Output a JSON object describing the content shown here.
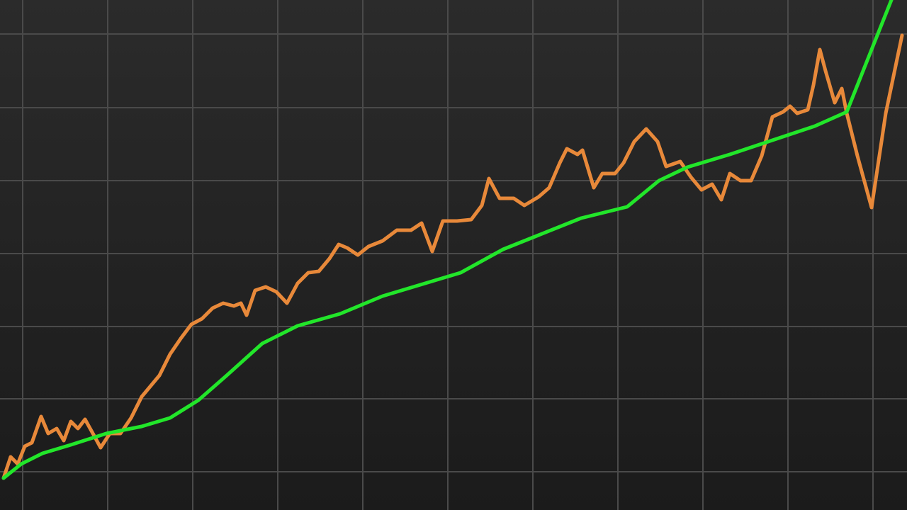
{
  "chart_data": {
    "type": "line",
    "xlim": [
      -32,
      1248
    ],
    "ylim": [
      -54,
      666
    ],
    "xticks": [
      0,
      120,
      240,
      360,
      480,
      600,
      720,
      840,
      960,
      1080,
      1200
    ],
    "yticks": [
      0,
      103,
      205,
      308,
      411,
      514,
      618
    ],
    "grid": true,
    "series": [
      {
        "color": "#e8893a",
        "x": [
          -27,
          -17,
          -7,
          3,
          13,
          26,
          36,
          48,
          58,
          68,
          78,
          88,
          98,
          110,
          123,
          138,
          153,
          168,
          178,
          193,
          208,
          223,
          238,
          253,
          268,
          283,
          298,
          308,
          316,
          328,
          343,
          358,
          373,
          388,
          403,
          418,
          433,
          446,
          458,
          473,
          488,
          508,
          528,
          548,
          563,
          578,
          593,
          613,
          633,
          648,
          658,
          673,
          693,
          708,
          728,
          743,
          758,
          768,
          783,
          790,
          806,
          818,
          836,
          848,
          863,
          880,
          896,
          908,
          928,
          943,
          958,
          973,
          986,
          998,
          1013,
          1028,
          1043,
          1058,
          1073,
          1083,
          1093,
          1108,
          1116,
          1125,
          1133,
          1146,
          1156,
          1163,
          1178,
          1198,
          1218,
          1241
        ],
        "values": [
          -9,
          21,
          11,
          36,
          41,
          78,
          54,
          61,
          44,
          71,
          61,
          74,
          56,
          34,
          54,
          54,
          76,
          106,
          118,
          136,
          166,
          188,
          208,
          216,
          231,
          238,
          234,
          238,
          221,
          256,
          261,
          254,
          238,
          266,
          281,
          283,
          301,
          321,
          316,
          306,
          318,
          326,
          341,
          341,
          351,
          311,
          354,
          354,
          356,
          376,
          414,
          386,
          386,
          376,
          388,
          401,
          436,
          456,
          448,
          454,
          401,
          421,
          421,
          436,
          466,
          484,
          466,
          431,
          438,
          416,
          398,
          406,
          384,
          421,
          411,
          411,
          446,
          501,
          508,
          516,
          506,
          511,
          546,
          596,
          566,
          521,
          541,
          506,
          446,
          373,
          506,
          616
        ]
      },
      {
        "color": "#22e62a",
        "x": [
          -27,
          -2,
          28,
          68,
          118,
          168,
          208,
          248,
          288,
          338,
          388,
          448,
          508,
          568,
          618,
          678,
          728,
          788,
          853,
          898,
          938,
          998,
          1058,
          1118,
          1163,
          1198,
          1226
        ],
        "values": [
          -9,
          11,
          26,
          38,
          54,
          64,
          76,
          101,
          136,
          181,
          206,
          223,
          248,
          266,
          281,
          314,
          334,
          358,
          374,
          411,
          430,
          448,
          468,
          488,
          508,
          596,
          666
        ]
      }
    ]
  }
}
